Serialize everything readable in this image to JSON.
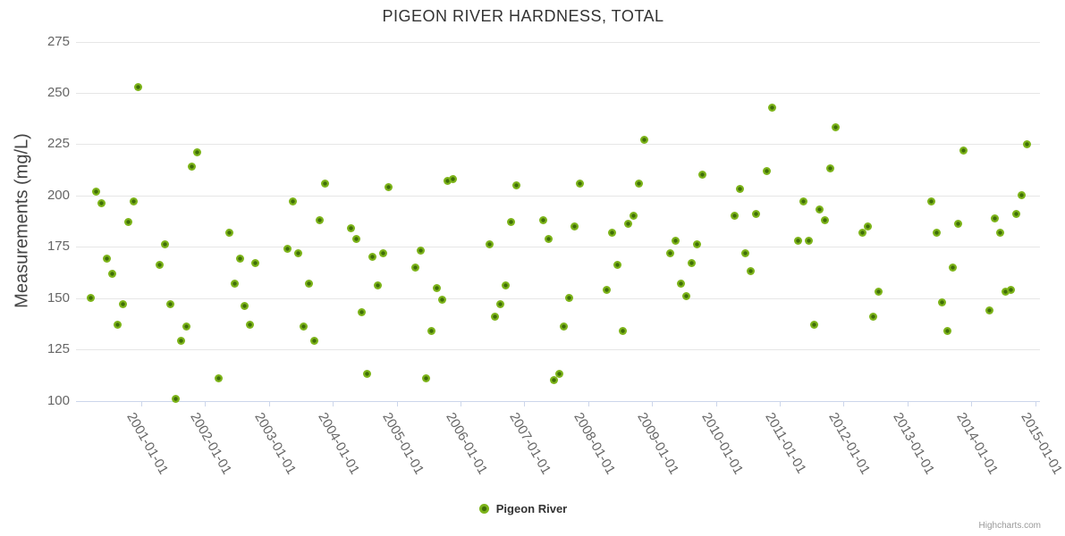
{
  "title": "PIGEON RIVER HARDNESS, TOTAL",
  "credits": {
    "text": "Highcharts.com"
  },
  "legend": {
    "position": "bottom-center"
  },
  "colors": {
    "background": "#ffffff",
    "title": "#333333",
    "y_axis_title": "#444444",
    "axis_label": "#666666",
    "grid": "#e6e6e6",
    "axis_line": "#ccd6eb",
    "tick": "#ccd6eb",
    "marker": "#7db41a",
    "marker_core": "#3f6e08",
    "legend_text": "#333333",
    "credit": "#999999"
  },
  "chart_data": {
    "type": "scatter",
    "title": "PIGEON RIVER HARDNESS, TOTAL",
    "xlabel": "",
    "ylabel": "Measurements (mg/L)",
    "ylim": [
      100,
      275
    ],
    "y_ticks": [
      100,
      125,
      150,
      175,
      200,
      225,
      250,
      275
    ],
    "x_tick_labels": [
      "2001-01-01",
      "2002-01-01",
      "2003-01-01",
      "2004-01-01",
      "2005-01-01",
      "2006-01-01",
      "2007-01-01",
      "2008-01-01",
      "2009-01-01",
      "2010-01-01",
      "2011-01-01",
      "2012-01-01",
      "2013-01-01",
      "2014-01-01",
      "2015-01-01"
    ],
    "x_tick_years": [
      2001,
      2002,
      2003,
      2004,
      2005,
      2006,
      2007,
      2008,
      2009,
      2010,
      2011,
      2012,
      2013,
      2014,
      2015
    ],
    "xlim_yearfrac": [
      1999.978,
      2015.076
    ],
    "grid": true,
    "legend_position": "bottom",
    "series": [
      {
        "name": "Pigeon River",
        "points": [
          [
            "2000-03",
            150
          ],
          [
            "2000-04",
            202
          ],
          [
            "2000-05",
            196
          ],
          [
            "2000-06",
            169
          ],
          [
            "2000-07",
            162
          ],
          [
            "2000-08",
            137
          ],
          [
            "2000-09",
            147
          ],
          [
            "2000-10",
            187
          ],
          [
            "2000-11",
            197
          ],
          [
            "2000-12",
            253
          ],
          [
            "2001-04",
            166
          ],
          [
            "2001-05",
            176
          ],
          [
            "2001-06",
            147
          ],
          [
            "2001-07",
            101
          ],
          [
            "2001-08",
            129
          ],
          [
            "2001-09",
            136
          ],
          [
            "2001-10",
            214
          ],
          [
            "2001-11",
            221
          ],
          [
            "2002-03",
            111
          ],
          [
            "2002-05",
            182
          ],
          [
            "2002-06",
            157
          ],
          [
            "2002-07",
            169
          ],
          [
            "2002-08",
            146
          ],
          [
            "2002-09",
            137
          ],
          [
            "2002-10",
            167
          ],
          [
            "2003-04",
            174
          ],
          [
            "2003-05",
            197
          ],
          [
            "2003-06",
            172
          ],
          [
            "2003-07",
            136
          ],
          [
            "2003-08",
            157
          ],
          [
            "2003-09",
            129
          ],
          [
            "2003-10",
            188
          ],
          [
            "2003-11",
            206
          ],
          [
            "2004-04",
            184
          ],
          [
            "2004-05",
            179
          ],
          [
            "2004-06",
            143
          ],
          [
            "2004-07",
            113
          ],
          [
            "2004-08",
            170
          ],
          [
            "2004-09",
            156
          ],
          [
            "2004-10",
            172
          ],
          [
            "2004-11",
            204
          ],
          [
            "2005-04",
            165
          ],
          [
            "2005-05",
            173
          ],
          [
            "2005-06",
            111
          ],
          [
            "2005-07",
            134
          ],
          [
            "2005-08",
            155
          ],
          [
            "2005-09",
            149
          ],
          [
            "2005-10",
            207
          ],
          [
            "2005-11",
            208
          ],
          [
            "2006-06",
            176
          ],
          [
            "2006-07",
            141
          ],
          [
            "2006-08",
            147
          ],
          [
            "2006-09",
            156
          ],
          [
            "2006-10",
            187
          ],
          [
            "2006-11",
            205
          ],
          [
            "2007-04",
            188
          ],
          [
            "2007-05",
            179
          ],
          [
            "2007-06",
            110
          ],
          [
            "2007-07",
            113
          ],
          [
            "2007-08",
            136
          ],
          [
            "2007-09",
            150
          ],
          [
            "2007-10",
            185
          ],
          [
            "2007-11",
            206
          ],
          [
            "2008-04",
            154
          ],
          [
            "2008-05",
            182
          ],
          [
            "2008-06",
            166
          ],
          [
            "2008-07",
            134
          ],
          [
            "2008-08",
            186
          ],
          [
            "2008-09",
            190
          ],
          [
            "2008-10",
            206
          ],
          [
            "2008-11",
            227
          ],
          [
            "2009-04",
            172
          ],
          [
            "2009-05",
            178
          ],
          [
            "2009-06",
            157
          ],
          [
            "2009-07",
            151
          ],
          [
            "2009-08",
            167
          ],
          [
            "2009-09",
            176
          ],
          [
            "2009-10",
            210
          ],
          [
            "2010-04",
            190
          ],
          [
            "2010-05",
            203
          ],
          [
            "2010-06",
            172
          ],
          [
            "2010-07",
            163
          ],
          [
            "2010-08",
            191
          ],
          [
            "2010-10",
            212
          ],
          [
            "2010-11",
            243
          ],
          [
            "2011-04",
            178
          ],
          [
            "2011-05",
            197
          ],
          [
            "2011-06",
            178
          ],
          [
            "2011-07",
            137
          ],
          [
            "2011-08",
            193
          ],
          [
            "2011-09",
            188
          ],
          [
            "2011-10",
            213
          ],
          [
            "2011-11",
            233
          ],
          [
            "2012-04",
            182
          ],
          [
            "2012-05",
            185
          ],
          [
            "2012-06",
            141
          ],
          [
            "2012-07",
            153
          ],
          [
            "2013-05",
            197
          ],
          [
            "2013-06",
            182
          ],
          [
            "2013-07",
            148
          ],
          [
            "2013-08",
            134
          ],
          [
            "2013-09",
            165
          ],
          [
            "2013-10",
            186
          ],
          [
            "2013-11",
            222
          ],
          [
            "2014-04",
            144
          ],
          [
            "2014-05",
            189
          ],
          [
            "2014-06",
            182
          ],
          [
            "2014-07",
            153
          ],
          [
            "2014-08",
            154
          ],
          [
            "2014-09",
            191
          ],
          [
            "2014-10",
            200
          ],
          [
            "2014-11",
            225
          ]
        ]
      }
    ]
  }
}
